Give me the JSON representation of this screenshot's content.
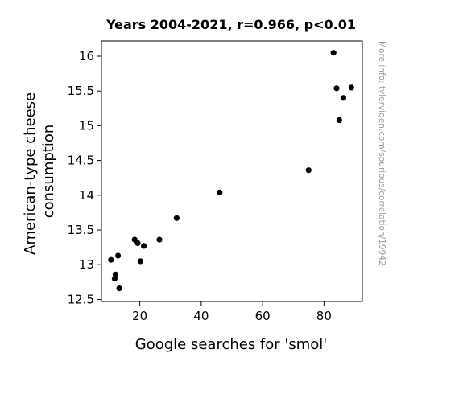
{
  "chart_data": {
    "type": "scatter",
    "title": "Years 2004-2021, r=0.966, p<0.01",
    "xlabel": "Google searches for 'smol'",
    "ylabel_lines": [
      "American-type cheese",
      "consumption"
    ],
    "xlim": [
      7.5,
      92.5
    ],
    "ylim": [
      12.47,
      16.22
    ],
    "x_ticks": [
      20,
      40,
      60,
      80
    ],
    "y_ticks": [
      12.5,
      13,
      13.5,
      14,
      14.5,
      15,
      15.5,
      16
    ],
    "y_tick_labels": [
      "12.5",
      "13",
      "13.5",
      "14",
      "14.5",
      "15",
      "15.5",
      "16"
    ],
    "grid": false,
    "marker_color": "#000000",
    "points": [
      {
        "x": 10.6,
        "y": 13.07
      },
      {
        "x": 11.8,
        "y": 12.8
      },
      {
        "x": 12.1,
        "y": 12.86
      },
      {
        "x": 12.9,
        "y": 13.13
      },
      {
        "x": 13.3,
        "y": 12.66
      },
      {
        "x": 18.3,
        "y": 13.36
      },
      {
        "x": 19.3,
        "y": 13.31
      },
      {
        "x": 20.2,
        "y": 13.05
      },
      {
        "x": 21.3,
        "y": 13.27
      },
      {
        "x": 26.4,
        "y": 13.36
      },
      {
        "x": 32.0,
        "y": 13.67
      },
      {
        "x": 46.0,
        "y": 14.04
      },
      {
        "x": 75.0,
        "y": 14.36
      },
      {
        "x": 83.1,
        "y": 16.05
      },
      {
        "x": 84.1,
        "y": 15.54
      },
      {
        "x": 85.0,
        "y": 15.08
      },
      {
        "x": 86.3,
        "y": 15.4
      },
      {
        "x": 88.9,
        "y": 15.55
      }
    ]
  },
  "watermark": "More info: tylervigen.com/spurious/correlation/19942"
}
